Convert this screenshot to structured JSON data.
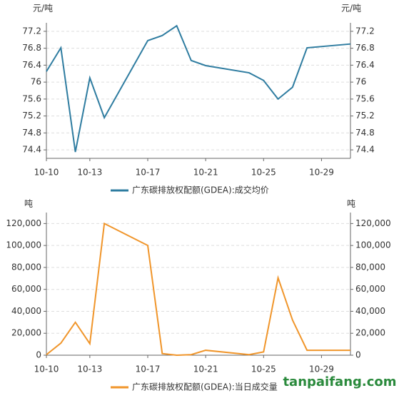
{
  "chart_data": [
    {
      "type": "line",
      "unit": "元/吨",
      "x": [
        0,
        1,
        2,
        3,
        4,
        7,
        8,
        9,
        10,
        11,
        14,
        15,
        16,
        17,
        18,
        21
      ],
      "xlim": [
        0,
        21
      ],
      "xticks": [
        {
          "value": 0,
          "label": "10-10"
        },
        {
          "value": 3,
          "label": "10-13"
        },
        {
          "value": 7,
          "label": "10-17"
        },
        {
          "value": 11,
          "label": "10-21"
        },
        {
          "value": 15,
          "label": "10-25"
        },
        {
          "value": 19,
          "label": "10-29"
        }
      ],
      "ylim": [
        74.2,
        77.4
      ],
      "yticks": [
        74.4,
        74.8,
        75.2,
        75.6,
        76,
        76.4,
        76.8,
        77.2
      ],
      "grid": true,
      "series": [
        {
          "name": "广东碳排放权配额(GDEA):成交均价",
          "color": "#2e7ca0",
          "values": [
            76.25,
            76.81,
            74.35,
            76.1,
            75.16,
            76.98,
            77.1,
            77.33,
            76.51,
            76.39,
            76.22,
            76.04,
            75.6,
            75.88,
            76.81,
            76.9
          ]
        }
      ]
    },
    {
      "type": "line",
      "unit": "吨",
      "x": [
        0,
        1,
        2,
        3,
        4,
        7,
        8,
        9,
        10,
        11,
        14,
        15,
        16,
        17,
        18,
        21
      ],
      "xlim": [
        0,
        21
      ],
      "xticks": [
        {
          "value": 0,
          "label": "10-10"
        },
        {
          "value": 3,
          "label": "10-13"
        },
        {
          "value": 7,
          "label": "10-17"
        },
        {
          "value": 11,
          "label": "10-21"
        },
        {
          "value": 15,
          "label": "10-25"
        },
        {
          "value": 19,
          "label": "10-29"
        }
      ],
      "ylim": [
        0,
        130000
      ],
      "yticks": [
        0,
        {
          "value": 20000,
          "label": "20,000"
        },
        {
          "value": 40000,
          "label": "40,000"
        },
        {
          "value": 60000,
          "label": "60,000"
        },
        {
          "value": 80000,
          "label": "80,000"
        },
        {
          "value": 100000,
          "label": "100,000"
        },
        {
          "value": 120000,
          "label": "120,000"
        }
      ],
      "grid": true,
      "series": [
        {
          "name": "广东碳排放权配额(GDEA):当日成交量",
          "color": "#f0952a",
          "values": [
            500,
            11000,
            30000,
            10500,
            120000,
            100000,
            1500,
            0,
            500,
            4500,
            500,
            3000,
            70500,
            32000,
            4500,
            4500
          ]
        }
      ]
    }
  ],
  "watermark": "tanpaifang.com"
}
